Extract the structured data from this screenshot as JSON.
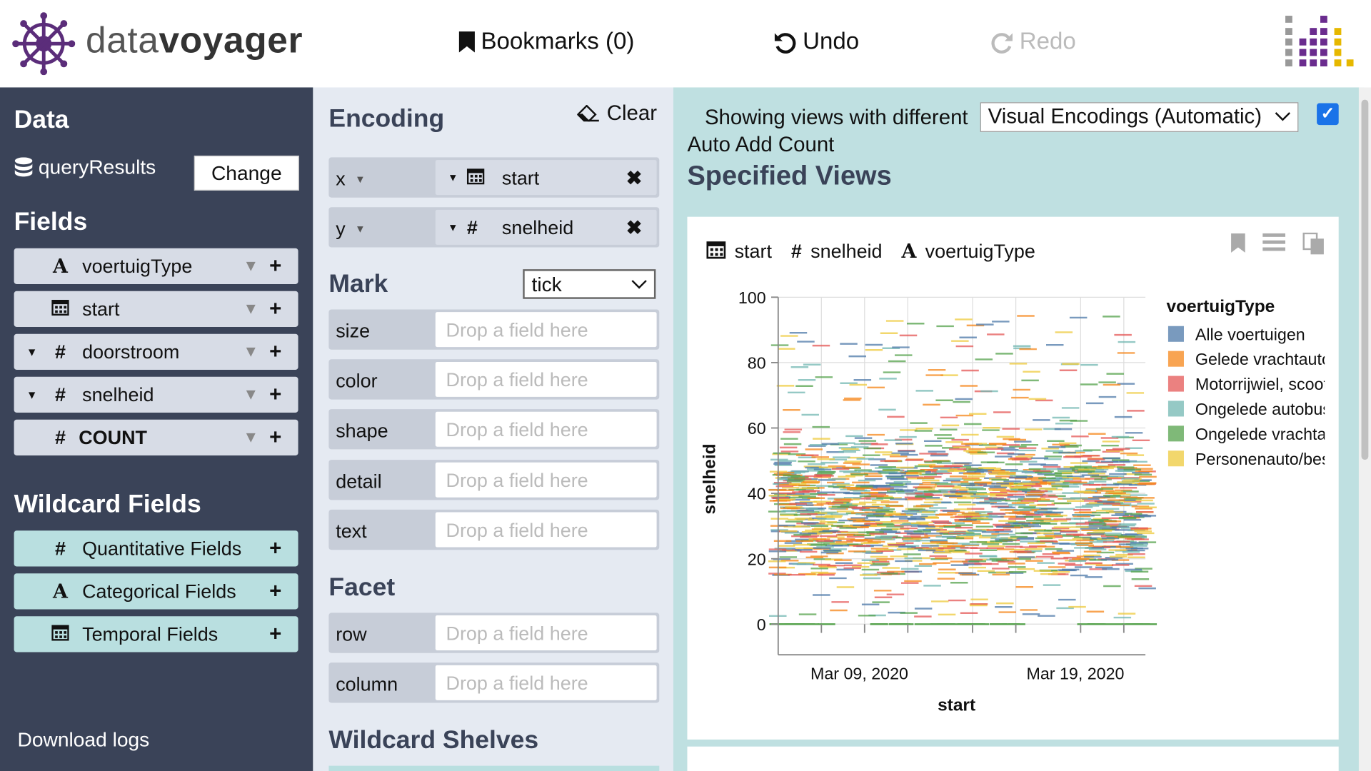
{
  "header": {
    "logo_prefix": "data",
    "logo_bold": "voyager",
    "bookmarks_label": "Bookmarks (0)",
    "undo_label": "Undo",
    "redo_label": "Redo"
  },
  "sidebar": {
    "data_title": "Data",
    "dataset_name": "queryResults",
    "change_label": "Change",
    "fields_title": "Fields",
    "fields": [
      {
        "type_icon": "A",
        "name": "voertuigType",
        "caret": false,
        "bold": false
      },
      {
        "type_icon": "calendar",
        "name": "start",
        "caret": false,
        "bold": false
      },
      {
        "type_icon": "#",
        "name": "doorstroom",
        "caret": true,
        "bold": false
      },
      {
        "type_icon": "#",
        "name": "snelheid",
        "caret": true,
        "bold": false
      },
      {
        "type_icon": "#",
        "name": "COUNT",
        "caret": false,
        "bold": true
      }
    ],
    "wildcard_title": "Wildcard Fields",
    "wildcards": [
      {
        "type_icon": "#",
        "name": "Quantitative Fields"
      },
      {
        "type_icon": "A",
        "name": "Categorical Fields"
      },
      {
        "type_icon": "calendar",
        "name": "Temporal Fields"
      }
    ],
    "download_logs": "Download logs"
  },
  "encoding": {
    "title": "Encoding",
    "clear_label": "Clear",
    "x": {
      "channel": "x",
      "field": "start"
    },
    "y": {
      "channel": "y",
      "field": "snelheid"
    },
    "mark_title": "Mark",
    "mark_value": "tick",
    "drop_placeholder": "Drop a field here",
    "mark_channels": [
      "size",
      "color",
      "shape",
      "detail",
      "text"
    ],
    "facet_title": "Facet",
    "facet_channels": [
      "row",
      "column"
    ],
    "wildcard_shelves_title": "Wildcard Shelves"
  },
  "main": {
    "showing_label": "Showing views with different",
    "view_select": "Visual Encodings (Automatic)",
    "auto_add_count": "Auto Add Count",
    "auto_add_count_checked": true,
    "specified_views": "Specified Views",
    "card_fields": [
      {
        "icon": "calendar",
        "name": "start"
      },
      {
        "icon": "#",
        "name": "snelheid"
      },
      {
        "icon": "A",
        "name": "voertuigType"
      }
    ]
  },
  "chart_data": {
    "type": "tick",
    "xlabel": "start",
    "ylabel": "snelheid",
    "x_ticks": [
      "Mar 09, 2020",
      "Mar 19, 2020"
    ],
    "y_ticks": [
      0,
      20,
      40,
      60,
      80,
      100
    ],
    "ylim": [
      0,
      100
    ],
    "xlim": [
      "2020-03-05",
      "2020-03-22"
    ],
    "grid": true,
    "legend_title": "voertuigType",
    "legend_position": "right",
    "series": [
      {
        "name": "Alle voertuigen",
        "color": "#4c78a8"
      },
      {
        "name": "Gelede vrachtauto",
        "color": "#f58518"
      },
      {
        "name": "Motorrijwiel, scooter",
        "color": "#e45756"
      },
      {
        "name": "Ongelede autobus",
        "color": "#72b7b2"
      },
      {
        "name": "Ongelede vrachtauto",
        "color": "#54a24b"
      },
      {
        "name": "Personenauto/bestelauto",
        "color": "#eeca3b"
      }
    ],
    "density": {
      "dense_range": [
        15,
        55
      ],
      "sparse_range": [
        55,
        95
      ],
      "core_range": [
        22,
        48
      ]
    }
  }
}
